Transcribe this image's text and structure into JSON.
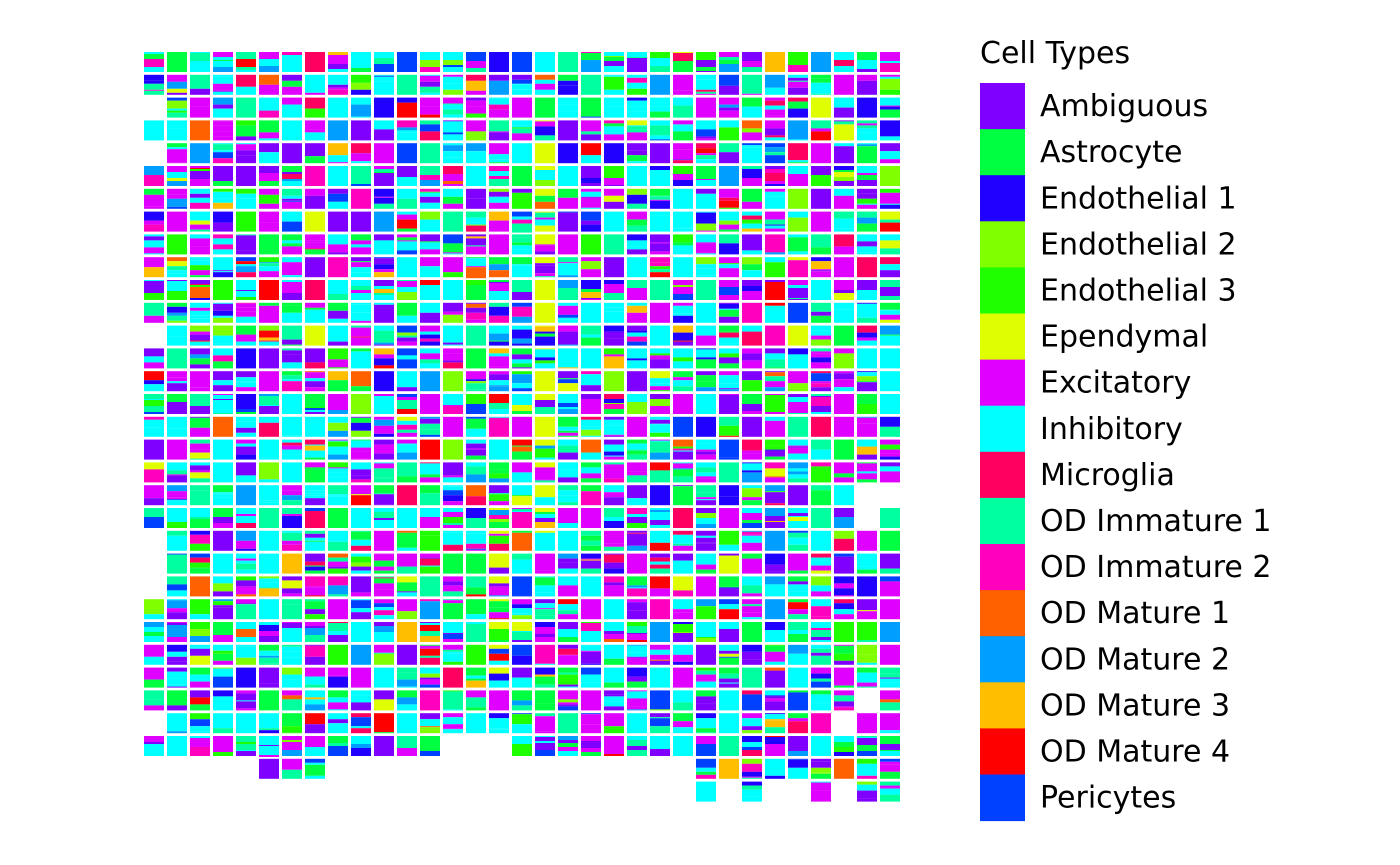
{
  "chart_data": {
    "type": "heatmap",
    "title": "",
    "xlabel": "",
    "ylabel": "",
    "grid": false,
    "legend_position": "right",
    "legend": {
      "title": "Cell Types",
      "entries": [
        {
          "label": "Ambiguous",
          "color": "#8000FF"
        },
        {
          "label": "Astrocyte",
          "color": "#00FF40"
        },
        {
          "label": "Endothelial 1",
          "color": "#2000FF"
        },
        {
          "label": "Endothelial 2",
          "color": "#80FF00"
        },
        {
          "label": "Endothelial 3",
          "color": "#20FF00"
        },
        {
          "label": "Ependymal",
          "color": "#DFFF00"
        },
        {
          "label": "Excitatory",
          "color": "#DF00FF"
        },
        {
          "label": "Inhibitory",
          "color": "#00FFFF"
        },
        {
          "label": "Microglia",
          "color": "#FF0060"
        },
        {
          "label": "OD Immature 1",
          "color": "#00FF9F"
        },
        {
          "label": "OD Immature 2",
          "color": "#FF00BF"
        },
        {
          "label": "OD Mature 1",
          "color": "#FF6000"
        },
        {
          "label": "OD Mature 2",
          "color": "#009FFF"
        },
        {
          "label": "OD Mature 3",
          "color": "#FFBF00"
        },
        {
          "label": "OD Mature 4",
          "color": "#FF0000"
        },
        {
          "label": "Pericytes",
          "color": "#0040FF"
        }
      ]
    },
    "grid_dims": {
      "columns": 33,
      "rows": 33
    },
    "category_weights": [
      10,
      7,
      4,
      2,
      3,
      1,
      14,
      22,
      2,
      8,
      3,
      1,
      3,
      1,
      1,
      3
    ],
    "missing_tiles": [
      [
        0,
        2
      ],
      [
        0,
        4
      ],
      [
        0,
        12
      ],
      [
        0,
        21
      ],
      [
        0,
        22
      ],
      [
        0,
        23
      ],
      [
        0,
        29
      ],
      [
        0,
        31
      ],
      [
        0,
        32
      ],
      [
        1,
        32
      ],
      [
        2,
        32
      ],
      [
        3,
        32
      ],
      [
        4,
        32
      ],
      [
        5,
        32
      ],
      [
        6,
        32
      ],
      [
        7,
        32
      ],
      [
        8,
        32
      ],
      [
        9,
        32
      ],
      [
        10,
        32
      ],
      [
        11,
        32
      ],
      [
        12,
        32
      ],
      [
        13,
        32
      ],
      [
        14,
        32
      ],
      [
        15,
        32
      ],
      [
        16,
        32
      ],
      [
        17,
        32
      ],
      [
        18,
        32
      ],
      [
        19,
        32
      ],
      [
        20,
        32
      ],
      [
        21,
        32
      ],
      [
        22,
        32
      ],
      [
        23,
        32
      ],
      [
        0,
        31
      ],
      [
        1,
        31
      ],
      [
        2,
        31
      ],
      [
        3,
        31
      ],
      [
        4,
        31
      ],
      [
        8,
        31
      ],
      [
        9,
        31
      ],
      [
        10,
        31
      ],
      [
        11,
        31
      ],
      [
        12,
        31
      ],
      [
        13,
        31
      ],
      [
        14,
        31
      ],
      [
        15,
        31
      ],
      [
        16,
        31
      ],
      [
        17,
        31
      ],
      [
        18,
        31
      ],
      [
        19,
        31
      ],
      [
        20,
        31
      ],
      [
        21,
        31
      ],
      [
        22,
        31
      ],
      [
        23,
        31
      ],
      [
        25,
        32
      ],
      [
        27,
        32
      ],
      [
        28,
        32
      ],
      [
        30,
        32
      ],
      [
        13,
        31
      ],
      [
        14,
        30
      ],
      [
        15,
        30
      ],
      [
        13,
        30
      ],
      [
        30,
        29
      ],
      [
        31,
        28
      ],
      [
        31,
        20
      ],
      [
        31,
        19
      ],
      [
        32,
        19
      ]
    ]
  }
}
